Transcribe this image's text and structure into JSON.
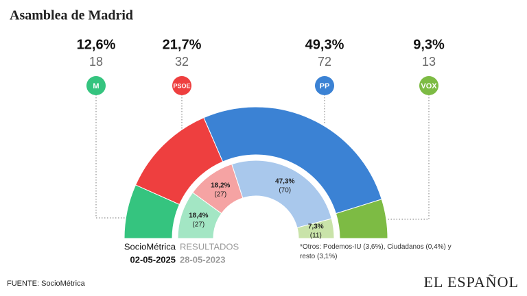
{
  "chart_data": {
    "type": "parliament",
    "title": "Asamblea de Madrid",
    "parties": [
      "M",
      "PSOE",
      "PP",
      "VOX"
    ],
    "series": [
      {
        "name": "SocioMétrica",
        "date": "02-05-2025",
        "colors": [
          "#35c47f",
          "#ee3f3f",
          "#3b82d4",
          "#7dbb44"
        ],
        "values": [
          12.6,
          21.7,
          49.3,
          9.3
        ],
        "value_labels": [
          "12,6%",
          "21,7%",
          "49,3%",
          "9,3%"
        ],
        "seats": [
          18,
          32,
          72,
          13
        ]
      },
      {
        "name": "RESULTADOS",
        "date": "28-05-2023",
        "colors": [
          "#a3e6c4",
          "#f5a3a3",
          "#a9c8ec",
          "#c9e3a9"
        ],
        "values": [
          18.4,
          18.2,
          47.3,
          7.3
        ],
        "value_labels": [
          "18,4%",
          "18,2%",
          "47,3%",
          "7,3%"
        ],
        "seats": [
          27,
          27,
          70,
          11
        ],
        "seat_labels": [
          "(27)",
          "(27)",
          "(70)",
          "(11)"
        ]
      }
    ],
    "note": "*Otros: Podemos-IU  (3,6%), Ciudadanos (0,4%) y resto (3,1%)"
  },
  "footer": {
    "source": "FUENTE: SocioMétrica",
    "brand": "EL ESPAÑOL"
  }
}
